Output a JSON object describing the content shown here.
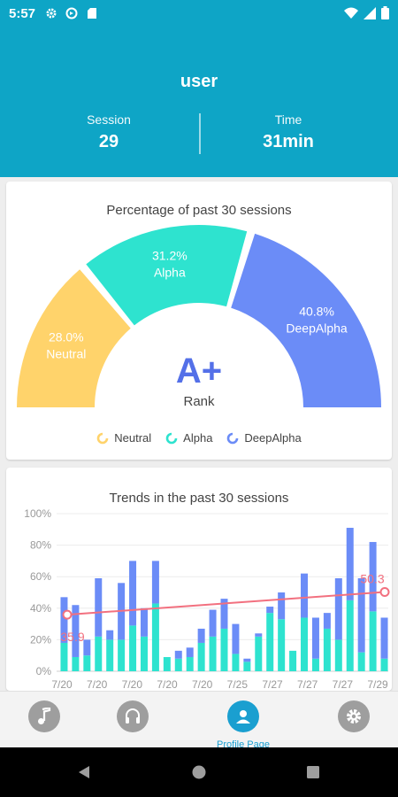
{
  "status_bar": {
    "time": "5:57"
  },
  "header": {
    "username": "user",
    "session_label": "Session",
    "session_value": "29",
    "time_label": "Time",
    "time_value": "31min"
  },
  "gauge_card": {
    "title": "Percentage of past 30 sessions",
    "rank": "A+",
    "rank_label": "Rank",
    "legend": [
      "Neutral",
      "Alpha",
      "DeepAlpha"
    ],
    "chart_data": {
      "type": "pie",
      "title": "Percentage of past 30 sessions",
      "labels": [
        "Neutral",
        "Alpha",
        "DeepAlpha"
      ],
      "values": [
        28.0,
        31.2,
        40.8
      ],
      "value_labels": [
        "28.0%",
        "31.2%",
        "40.8%"
      ],
      "colors": [
        "#ffd36b",
        "#2ee3cf",
        "#6b8cf7"
      ],
      "shape": "semi-donut",
      "legend_position": "bottom"
    }
  },
  "trend_card": {
    "title": "Trends in the past 30 sessions",
    "chart_data": {
      "type": "bar",
      "title": "Trends in the past 30 sessions",
      "stacked": true,
      "y_ticks": [
        "0%",
        "20%",
        "40%",
        "60%",
        "80%",
        "100%"
      ],
      "ylim": [
        0,
        100
      ],
      "grid": true,
      "x_tick_labels": [
        "7/20",
        "7/20",
        "7/20",
        "7/20",
        "7/20",
        "7/25",
        "7/27",
        "7/27",
        "7/27",
        "7/29"
      ],
      "series": [
        {
          "color": "#2ee3cf",
          "values": [
            18,
            9,
            10,
            22,
            20,
            20,
            29,
            22,
            43,
            9,
            8,
            9,
            18,
            22,
            27,
            11,
            6,
            22,
            37,
            33,
            13,
            34,
            8,
            27,
            20,
            45,
            12,
            38,
            8
          ]
        },
        {
          "color": "#6b8cf7",
          "values": [
            29,
            33,
            10,
            37,
            6,
            36,
            41,
            18,
            27,
            0,
            5,
            6,
            9,
            17,
            19,
            19,
            2,
            2,
            4,
            17,
            0,
            28,
            26,
            10,
            39,
            46,
            47,
            44,
            26
          ]
        }
      ],
      "trend_line": {
        "color": "#f2707f",
        "start": 35.9,
        "end": 50.3,
        "start_label": "35.9",
        "end_label": "50.3"
      }
    }
  },
  "nav": {
    "items": [
      "music",
      "headphones",
      "Profile Page",
      "settings"
    ],
    "active_label": "Profile Page"
  },
  "colors": {
    "primary": "#0ea5c6",
    "neutral": "#ffd36b",
    "alpha": "#2ee3cf",
    "deep_alpha": "#6b8cf7",
    "trend": "#f2707f"
  }
}
